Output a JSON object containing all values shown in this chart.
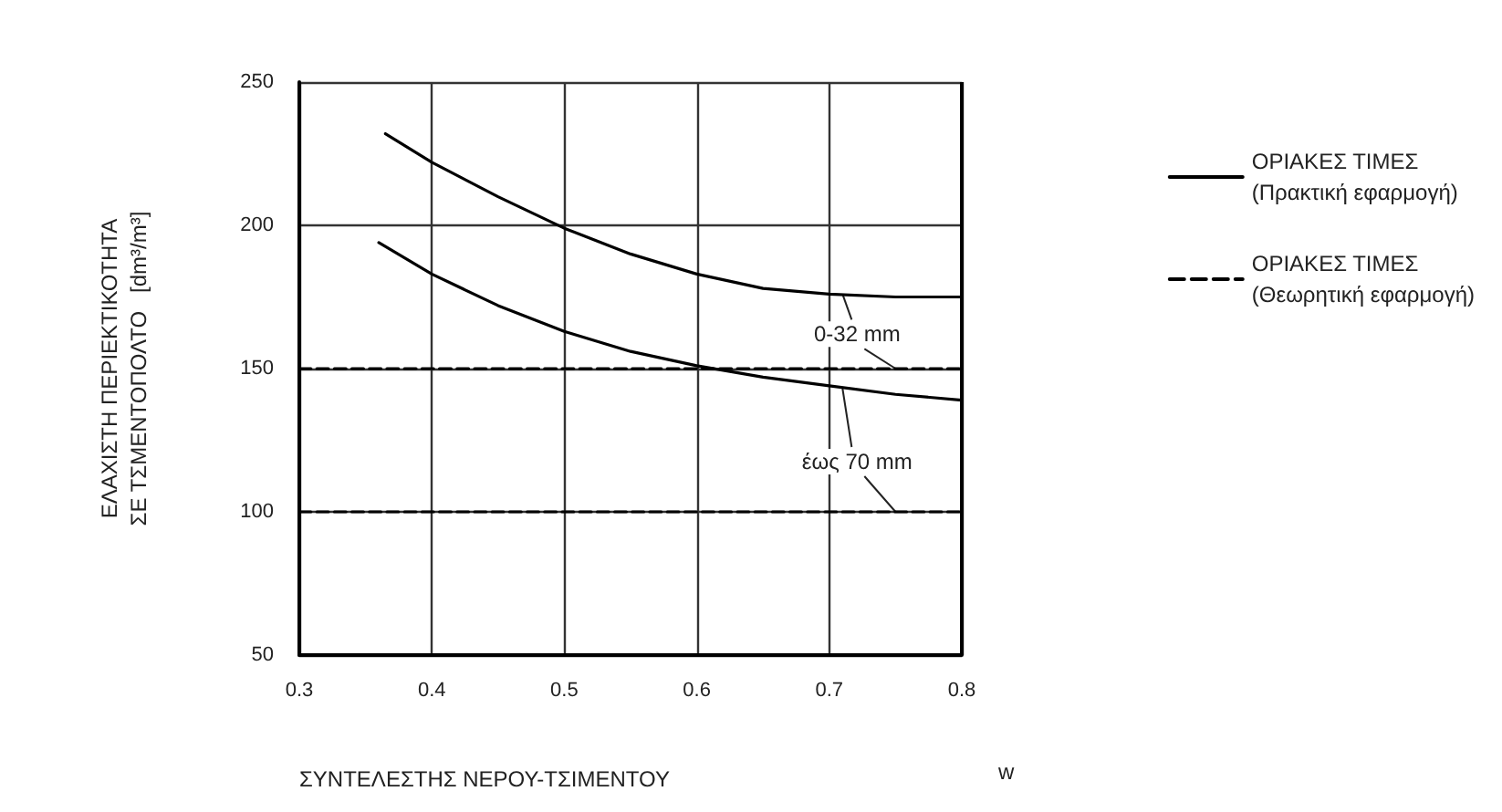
{
  "chart_data": {
    "type": "line",
    "xlabel": "ΣΥΝΤΕΛΕΣΤΗΣ ΝΕΡΟΥ-ΤΣΙΜΕΝΤΟΥ",
    "ylabel": "ΕΛΑΧΙΣΤΗ ΠΕΡΙΕΚΤΙΚΟΤΗΤΑ\nΣΕ ΤΣΜΕΝΤΟΠΟΛΤΟ   [dm³/m³]",
    "series": [
      {
        "name": "ΟΡΙΑΚΕΣ ΤΙΜΕΣ\n(Πρακτική εφαρμογή)",
        "color": "#000000",
        "line_style": "solid",
        "x": [
          0.365,
          0.4,
          0.45,
          0.5,
          0.55,
          0.6,
          0.65,
          0.7,
          0.75,
          0.8
        ],
        "values": [
          232,
          222,
          210,
          199,
          190,
          183,
          178,
          176,
          175,
          175
        ]
      },
      {
        "color": "#000000",
        "line_style": "solid",
        "x": [
          0.36,
          0.4,
          0.45,
          0.5,
          0.55,
          0.6,
          0.65,
          0.7,
          0.75,
          0.8
        ],
        "values": [
          194,
          183,
          172,
          163,
          156,
          151,
          147,
          144,
          141,
          139
        ]
      },
      {
        "name": "ΟΡΙΑΚΕΣ ΤΙΜΕΣ\n(Θεωρητική εφαρμογή)",
        "color": "#000000",
        "line_style": "dashed",
        "x": [
          0.3,
          0.8
        ],
        "values": [
          150,
          150
        ]
      },
      {
        "color": "#000000",
        "line_style": "dashed",
        "x": [
          0.3,
          0.8
        ],
        "values": [
          100,
          100
        ]
      }
    ],
    "annotations": [
      {
        "text": "0-32 mm",
        "x": 0.71,
        "y": 176
      },
      {
        "text": "έως 70 mm",
        "x": 0.71,
        "y": 143
      },
      "w"
    ],
    "xlim": [
      0.3,
      0.8
    ],
    "xticks": [
      0.3,
      0.4,
      0.5,
      0.6,
      0.7,
      0.8
    ],
    "ylim": [
      50,
      250
    ],
    "yticks": [
      50,
      100,
      150,
      200,
      250
    ],
    "grid": true,
    "legend": "right",
    "marker": "none"
  }
}
